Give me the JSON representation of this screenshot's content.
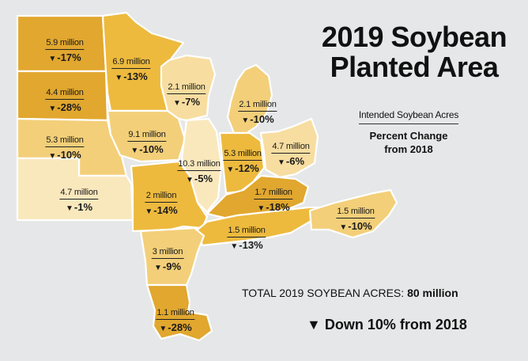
{
  "title_line1": "2019 Soybean",
  "title_line2": "Planted Area",
  "legend": {
    "line1": "Intended Soybean Acres",
    "line2": "Percent Change",
    "line3": "from 2018"
  },
  "total": {
    "label": "TOTAL 2019 SOYBEAN ACRES:",
    "value": "80 million"
  },
  "summary": {
    "arrow": "▼",
    "text": "Down 10% from 2018"
  },
  "colors": {
    "background": "#e6e7e8",
    "dark_gold": "#e1a72e",
    "gold": "#edba3e",
    "medium": "#f3cf79",
    "light": "#f7dda0",
    "lightest": "#fae8bd",
    "border": "#ffffff"
  },
  "states": [
    {
      "id": "north-dakota",
      "acres": "5.9 million",
      "change": "-17%",
      "color": "#e1a72e"
    },
    {
      "id": "minnesota",
      "acres": "6.9 million",
      "change": "-13%",
      "color": "#edba3e"
    },
    {
      "id": "south-dakota",
      "acres": "4.4 million",
      "change": "-28%",
      "color": "#e1a72e"
    },
    {
      "id": "wisconsin",
      "acres": "2.1 million",
      "change": "-7%",
      "color": "#f7dda0"
    },
    {
      "id": "michigan",
      "acres": "2.1 million",
      "change": "-10%",
      "color": "#f3cf79"
    },
    {
      "id": "nebraska",
      "acres": "5.3 million",
      "change": "-10%",
      "color": "#f3cf79"
    },
    {
      "id": "iowa",
      "acres": "9.1 million",
      "change": "-10%",
      "color": "#f3cf79"
    },
    {
      "id": "illinois",
      "acres": "10.3 million",
      "change": "-5%",
      "color": "#fae8bd"
    },
    {
      "id": "indiana",
      "acres": "5.3 million",
      "change": "-12%",
      "color": "#edba3e"
    },
    {
      "id": "ohio",
      "acres": "4.7 million",
      "change": "-6%",
      "color": "#f7dda0"
    },
    {
      "id": "kansas",
      "acres": "4.7 million",
      "change": "-1%",
      "color": "#fae8bd"
    },
    {
      "id": "missouri",
      "acres": "2 million",
      "change": "-14%",
      "color": "#edba3e"
    },
    {
      "id": "kentucky",
      "acres": "1.7 million",
      "change": "-18%",
      "color": "#e1a72e"
    },
    {
      "id": "tennessee",
      "acres": "1.5 million",
      "change": "-13%",
      "color": "#edba3e"
    },
    {
      "id": "north-carolina",
      "acres": "1.5 million",
      "change": "-10%",
      "color": "#f3cf79"
    },
    {
      "id": "arkansas",
      "acres": "3 million",
      "change": "-9%",
      "color": "#f3cf79"
    },
    {
      "id": "louisiana",
      "acres": "1.1 million",
      "change": "-28%",
      "color": "#e1a72e"
    }
  ]
}
